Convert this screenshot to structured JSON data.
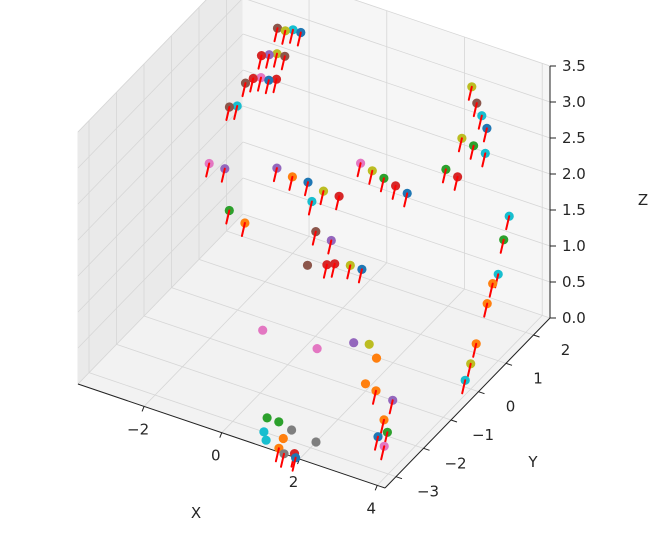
{
  "chart_data": {
    "type": "scatter",
    "projection": "3d",
    "title": "",
    "xlabel": "X",
    "ylabel": "Y",
    "zlabel": "Z",
    "xlim": [
      -3.7,
      4.2
    ],
    "ylim": [
      -3.4,
      2.6
    ],
    "zlim": [
      0,
      3.5
    ],
    "x_ticks": [
      "−2",
      "0",
      "2",
      "4"
    ],
    "y_ticks": [
      "−3",
      "−2",
      "−1",
      "0",
      "1",
      "2"
    ],
    "z_ticks": [
      "0.0",
      "0.5",
      "1.0",
      "1.5",
      "2.0",
      "2.5",
      "3.0",
      "3.5"
    ],
    "grid": true,
    "marker_colors": [
      "#1f77b4",
      "#ff7f0e",
      "#2ca02c",
      "#d62728",
      "#9467bd",
      "#8c564b",
      "#e377c2",
      "#7f7f7f",
      "#bcbd22",
      "#17becf"
    ],
    "arrow_color": "#ff0000",
    "points": [
      {
        "x": -2.6,
        "y": 2.3,
        "z": 2.9,
        "c": 5,
        "a": 1
      },
      {
        "x": -2.4,
        "y": 2.3,
        "z": 2.9,
        "c": 8,
        "a": 1
      },
      {
        "x": -2.2,
        "y": 2.3,
        "z": 2.95,
        "c": 9,
        "a": 1
      },
      {
        "x": -2.0,
        "y": 2.3,
        "z": 2.95,
        "c": 0,
        "a": 1
      },
      {
        "x": -2.8,
        "y": 2.0,
        "z": 2.6,
        "c": 3,
        "a": 1
      },
      {
        "x": -2.6,
        "y": 2.0,
        "z": 2.65,
        "c": 4,
        "a": 1
      },
      {
        "x": -2.4,
        "y": 2.0,
        "z": 2.7,
        "c": 8,
        "a": 1
      },
      {
        "x": -2.2,
        "y": 2.0,
        "z": 2.7,
        "c": 5,
        "a": 1
      },
      {
        "x": -3.0,
        "y": 1.7,
        "z": 2.3,
        "c": 5,
        "a": 1
      },
      {
        "x": -2.8,
        "y": 1.7,
        "z": 2.4,
        "c": 3,
        "a": 1
      },
      {
        "x": -2.6,
        "y": 1.7,
        "z": 2.45,
        "c": 6,
        "a": 1
      },
      {
        "x": -2.4,
        "y": 1.7,
        "z": 2.45,
        "c": 0,
        "a": 1
      },
      {
        "x": -2.2,
        "y": 1.7,
        "z": 2.5,
        "c": 3,
        "a": 1
      },
      {
        "x": -3.2,
        "y": 1.4,
        "z": 2.05,
        "c": 5,
        "a": 1
      },
      {
        "x": -3.0,
        "y": 1.4,
        "z": 2.1,
        "c": 9,
        "a": 1
      },
      {
        "x": 2.4,
        "y": 2.3,
        "z": 3.0,
        "c": 8,
        "a": 1
      },
      {
        "x": 2.6,
        "y": 2.2,
        "z": 2.85,
        "c": 5,
        "a": 1
      },
      {
        "x": 2.8,
        "y": 2.1,
        "z": 2.75,
        "c": 9,
        "a": 1
      },
      {
        "x": 3.0,
        "y": 2.0,
        "z": 2.65,
        "c": 0,
        "a": 1
      },
      {
        "x": 2.5,
        "y": 1.8,
        "z": 2.5,
        "c": 8,
        "a": 1
      },
      {
        "x": 2.8,
        "y": 1.8,
        "z": 2.45,
        "c": 2,
        "a": 1
      },
      {
        "x": 3.1,
        "y": 1.8,
        "z": 2.4,
        "c": 9,
        "a": 1
      },
      {
        "x": 2.3,
        "y": 1.5,
        "z": 2.15,
        "c": 2,
        "a": 1
      },
      {
        "x": 2.6,
        "y": 1.5,
        "z": 2.1,
        "c": 3,
        "a": 1
      },
      {
        "x": 0.6,
        "y": 0.8,
        "z": 2.2,
        "c": 6,
        "a": 1
      },
      {
        "x": 0.9,
        "y": 0.8,
        "z": 2.15,
        "c": 8,
        "a": 1
      },
      {
        "x": 1.2,
        "y": 0.8,
        "z": 2.1,
        "c": 2,
        "a": 1
      },
      {
        "x": 1.5,
        "y": 0.8,
        "z": 2.05,
        "c": 3,
        "a": 1
      },
      {
        "x": 1.8,
        "y": 0.8,
        "z": 2.0,
        "c": 0,
        "a": 1
      },
      {
        "x": -1.2,
        "y": 0.3,
        "z": 2.0,
        "c": 4,
        "a": 1
      },
      {
        "x": -0.8,
        "y": 0.3,
        "z": 1.95,
        "c": 1,
        "a": 1
      },
      {
        "x": -0.4,
        "y": 0.3,
        "z": 1.95,
        "c": 0,
        "a": 1
      },
      {
        "x": 0.0,
        "y": 0.3,
        "z": 1.9,
        "c": 8,
        "a": 1
      },
      {
        "x": 0.4,
        "y": 0.3,
        "z": 1.9,
        "c": 3,
        "a": 1
      },
      {
        "x": -2.8,
        "y": 0.1,
        "z": 1.85,
        "c": 6,
        "a": 1
      },
      {
        "x": -2.4,
        "y": 0.1,
        "z": 1.85,
        "c": 4,
        "a": 1
      },
      {
        "x": -0.3,
        "y": 0.3,
        "z": 1.7,
        "c": 9,
        "a": 1
      },
      {
        "x": -2.0,
        "y": -0.3,
        "z": 1.5,
        "c": 2,
        "a": 1
      },
      {
        "x": -1.6,
        "y": -0.3,
        "z": 1.4,
        "c": 1,
        "a": 1
      },
      {
        "x": -0.2,
        "y": 0.3,
        "z": 1.3,
        "c": 5,
        "a": 1
      },
      {
        "x": 0.2,
        "y": 0.3,
        "z": 1.25,
        "c": 4,
        "a": 1
      },
      {
        "x": 0.3,
        "y": 0.0,
        "z": 1.05,
        "c": 3,
        "a": 1
      },
      {
        "x": 0.5,
        "y": 0.0,
        "z": 1.1,
        "c": 3,
        "a": 1
      },
      {
        "x": 0.9,
        "y": 0.0,
        "z": 1.15,
        "c": 8,
        "a": 1
      },
      {
        "x": 1.2,
        "y": 0.0,
        "z": 1.15,
        "c": 0,
        "a": 1
      },
      {
        "x": -0.2,
        "y": 0.0,
        "z": 0.95,
        "c": 5,
        "a": 0
      },
      {
        "x": 4.0,
        "y": 1.4,
        "z": 1.85,
        "c": 9,
        "a": 1
      },
      {
        "x": 4.0,
        "y": 1.2,
        "z": 1.6,
        "c": 2,
        "a": 1
      },
      {
        "x": 4.0,
        "y": 1.0,
        "z": 1.2,
        "c": 9,
        "a": 1
      },
      {
        "x": 4.0,
        "y": 0.8,
        "z": 1.15,
        "c": 1,
        "a": 1
      },
      {
        "x": 4.0,
        "y": 0.6,
        "z": 0.95,
        "c": 1,
        "a": 1
      },
      {
        "x": 4.0,
        "y": 0.2,
        "z": 0.55,
        "c": 1,
        "a": 1
      },
      {
        "x": 4.0,
        "y": 0.0,
        "z": 0.35,
        "c": 8,
        "a": 1
      },
      {
        "x": 4.0,
        "y": -0.2,
        "z": 0.2,
        "c": 9,
        "a": 1
      },
      {
        "x": -1.0,
        "y": -0.5,
        "z": 0.1,
        "c": 6,
        "a": 0
      },
      {
        "x": 0.4,
        "y": -0.5,
        "z": 0.1,
        "c": 6,
        "a": 0
      },
      {
        "x": 1.2,
        "y": -0.3,
        "z": 0.25,
        "c": 4,
        "a": 0
      },
      {
        "x": 1.6,
        "y": -0.3,
        "z": 0.3,
        "c": 8,
        "a": 0
      },
      {
        "x": 2.0,
        "y": -0.6,
        "z": 0.3,
        "c": 1,
        "a": 0
      },
      {
        "x": 2.0,
        "y": -1.0,
        "z": 0.1,
        "c": 1,
        "a": 0
      },
      {
        "x": 2.2,
        "y": -0.9,
        "z": 0.0,
        "c": 1,
        "a": 1
      },
      {
        "x": 2.7,
        "y": -1.0,
        "z": 0.0,
        "c": 4,
        "a": 1
      },
      {
        "x": 2.9,
        "y": -1.6,
        "z": 0.0,
        "c": 1,
        "a": 1
      },
      {
        "x": 3.2,
        "y": -1.9,
        "z": 0.0,
        "c": 2,
        "a": 1
      },
      {
        "x": 3.1,
        "y": -2.1,
        "z": 0.0,
        "c": 0,
        "a": 1
      },
      {
        "x": 3.4,
        "y": -2.3,
        "z": 0.0,
        "c": 6,
        "a": 1
      },
      {
        "x": 0.6,
        "y": -2.6,
        "z": 0.0,
        "c": 2,
        "a": 0
      },
      {
        "x": 0.9,
        "y": -2.6,
        "z": 0.0,
        "c": 2,
        "a": 0
      },
      {
        "x": 1.3,
        "y": -2.7,
        "z": 0.0,
        "c": 7,
        "a": 0
      },
      {
        "x": 2.0,
        "y": -2.8,
        "z": 0.0,
        "c": 7,
        "a": 0
      },
      {
        "x": 0.8,
        "y": -3.0,
        "z": 0.0,
        "c": 9,
        "a": 0
      },
      {
        "x": 1.3,
        "y": -3.0,
        "z": 0.0,
        "c": 1,
        "a": 0
      },
      {
        "x": 1.0,
        "y": -3.2,
        "z": 0.0,
        "c": 9,
        "a": 0
      },
      {
        "x": 1.4,
        "y": -3.3,
        "z": 0.0,
        "c": 1,
        "a": 1
      },
      {
        "x": 1.8,
        "y": -3.3,
        "z": 0.0,
        "c": 3,
        "a": 1
      },
      {
        "x": 1.9,
        "y": -3.4,
        "z": 0.0,
        "c": 0,
        "a": 1
      },
      {
        "x": 1.6,
        "y": -3.4,
        "z": 0.0,
        "c": 7,
        "a": 1
      }
    ]
  }
}
